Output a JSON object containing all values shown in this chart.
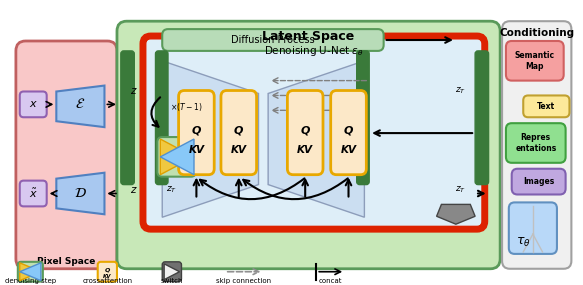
{
  "title": "Latent Space",
  "conditioning_title": "Conditioning",
  "pixel_space_label": "Pixel Space",
  "denoising_label": "Denoising U-Net $\\epsilon_\\theta$",
  "diffusion_label": "Diffusion Process",
  "bg_pixel": "#f9c8c8",
  "bg_latent": "#c8e8b8",
  "bg_unet_inner": "#deeef8",
  "color_red_border": "#dd2200",
  "color_green_block": "#3a7a3a",
  "color_qkv_fill": "#fce8c8",
  "color_qkv_border": "#e8a800",
  "color_encoder_box": "#a8c8f0",
  "color_x_box": "#d8c8f0",
  "color_conditioning_bg": "#f0f0f0",
  "color_trap_fill": "#c8dcf0",
  "color_trap_edge": "#8090b0"
}
